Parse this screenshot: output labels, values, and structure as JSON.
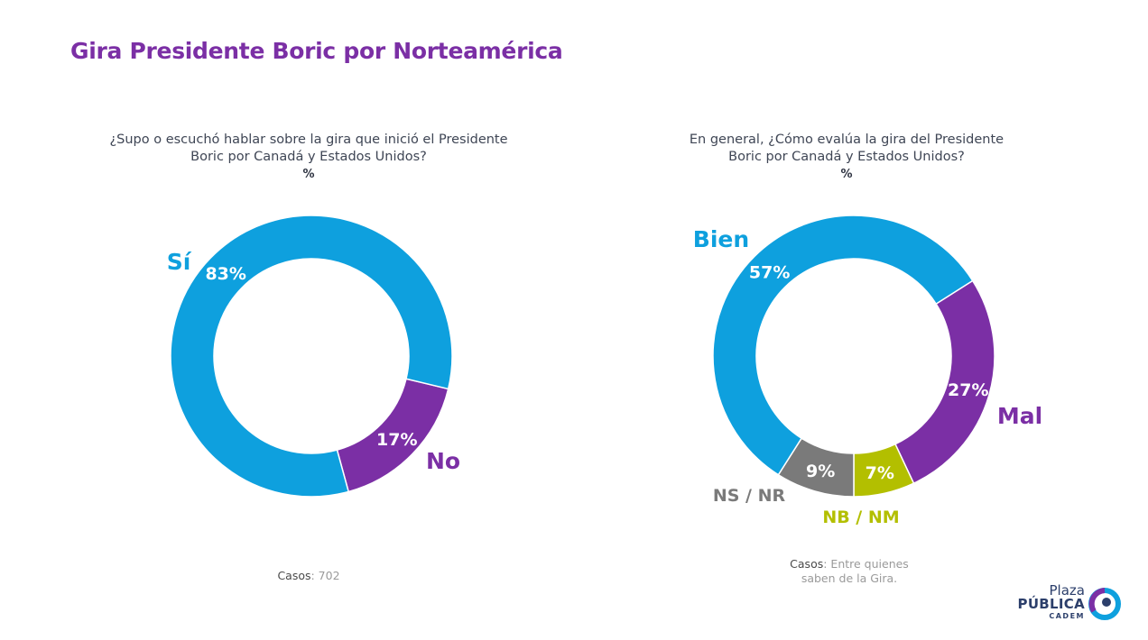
{
  "title": "Gira Presidente Boric por Norteamérica",
  "colors": {
    "title": "#7b2fa5",
    "blue": "#0ea0de",
    "purple": "#7b2fa5",
    "gray": "#7a7a7a",
    "olive": "#b3bf00"
  },
  "chart_data": [
    {
      "type": "pie",
      "donut": true,
      "title": "¿Supo o escuchó hablar sobre la gira que inició el Presidente Boric por Canadá y Estados Unidos?",
      "title_lines": [
        "¿Supo o escuchó hablar sobre la gira que inició el Presidente",
        "Boric por Canadá y Estados Unidos?"
      ],
      "unit": "%",
      "categories": [
        "Sí",
        "No"
      ],
      "values": [
        83,
        17
      ],
      "value_labels": [
        "83%",
        "17%"
      ],
      "colors": [
        "#0ea0de",
        "#7b2fa5"
      ],
      "note_label": "Casos",
      "note_text": ": 702"
    },
    {
      "type": "pie",
      "donut": true,
      "title": "En general, ¿Cómo evalúa la gira del Presidente Boric por Canadá y Estados Unidos?",
      "title_lines": [
        "En general, ¿Cómo evalúa la gira del Presidente",
        "Boric por Canadá y Estados Unidos?"
      ],
      "unit": "%",
      "categories": [
        "Bien",
        "Mal",
        "NB / NM",
        "NS / NR"
      ],
      "values": [
        57,
        27,
        7,
        9
      ],
      "value_labels": [
        "57%",
        "27%",
        "7%",
        "9%"
      ],
      "colors": [
        "#0ea0de",
        "#7b2fa5",
        "#b3bf00",
        "#7a7a7a"
      ],
      "note_label": "Casos",
      "note_text": ": Entre quienes",
      "note_text2": "saben de la Gira."
    }
  ],
  "logo": {
    "line1": "Plaza",
    "line2": "PÚBLICA",
    "line3": "CADEM"
  }
}
